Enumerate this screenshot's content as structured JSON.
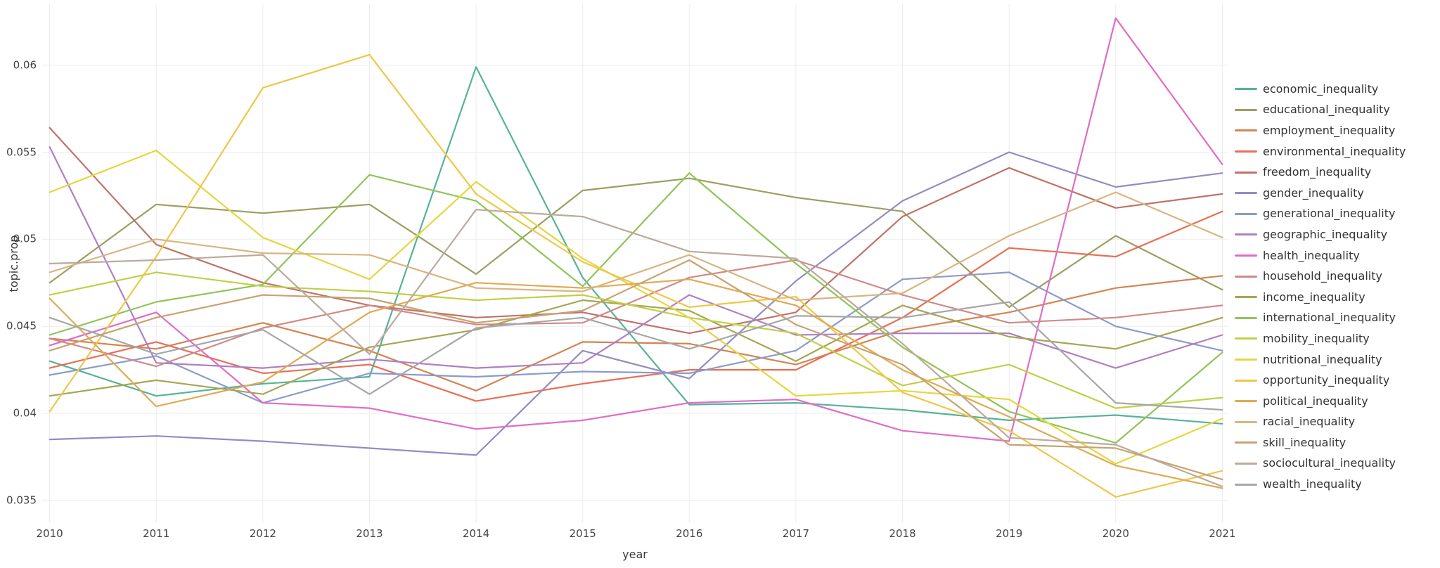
{
  "figure": {
    "background_color": "#ffffff",
    "gridline_color": "#ececec",
    "tick_label_color": "#444444",
    "axis_title_color": "#3a3a3a",
    "legend_label_color": "#333333"
  },
  "chart_data": {
    "type": "line",
    "title": "",
    "xlabel": "year",
    "ylabel": "topic.prop",
    "grid": true,
    "legend_position": "right",
    "x": [
      2010,
      2011,
      2012,
      2013,
      2014,
      2015,
      2016,
      2017,
      2018,
      2019,
      2020,
      2021
    ],
    "x_tick_labels": [
      "2010",
      "2011",
      "2012",
      "2013",
      "2014",
      "2015",
      "2016",
      "2017",
      "2018",
      "2019",
      "2020",
      "2021"
    ],
    "y_ticks": [
      {
        "label": "0.035",
        "value": 0.035
      },
      {
        "label": "0.04",
        "value": 0.04
      },
      {
        "label": "0.045",
        "value": 0.045
      },
      {
        "label": "0.05",
        "value": 0.05
      },
      {
        "label": "0.055",
        "value": 0.055
      },
      {
        "label": "0.06",
        "value": 0.06
      }
    ],
    "x_domain": [
      2009.93,
      2021.05
    ],
    "y_domain": [
      0.0337,
      0.0635
    ],
    "series": [
      {
        "name": "economic_inequality",
        "color": "#56b29a",
        "values": [
          0.043,
          0.041,
          0.0417,
          0.0421,
          0.0599,
          0.0478,
          0.0405,
          0.0406,
          0.0402,
          0.0396,
          0.0399,
          0.0394
        ]
      },
      {
        "name": "educational_inequality",
        "color": "#9d9f60",
        "values": [
          0.0475,
          0.052,
          0.0515,
          0.052,
          0.048,
          0.0528,
          0.0535,
          0.0524,
          0.0516,
          0.0461,
          0.0502,
          0.0471
        ]
      },
      {
        "name": "employment_inequality",
        "color": "#d48452",
        "values": [
          0.0443,
          0.0437,
          0.0452,
          0.0436,
          0.0413,
          0.0441,
          0.044,
          0.0428,
          0.0448,
          0.0458,
          0.0472,
          0.0479
        ]
      },
      {
        "name": "environmental_inequality",
        "color": "#e76f55",
        "values": [
          0.0426,
          0.0441,
          0.0423,
          0.0428,
          0.0407,
          0.0417,
          0.0425,
          0.0425,
          0.0455,
          0.0495,
          0.049,
          0.0516
        ]
      },
      {
        "name": "freedom_inequality",
        "color": "#bf7369",
        "values": [
          0.0564,
          0.0497,
          0.0475,
          0.0462,
          0.0455,
          0.0458,
          0.0446,
          0.0458,
          0.0513,
          0.0541,
          0.0518,
          0.0526
        ]
      },
      {
        "name": "gender_inequality",
        "color": "#938cc2",
        "values": [
          0.0385,
          0.0387,
          0.0384,
          0.038,
          0.0376,
          0.0436,
          0.042,
          0.0476,
          0.0522,
          0.055,
          0.053,
          0.0538
        ]
      },
      {
        "name": "generational_inequality",
        "color": "#8b9cca",
        "values": [
          0.0422,
          0.0433,
          0.0406,
          0.0423,
          0.0421,
          0.0424,
          0.0423,
          0.0436,
          0.0477,
          0.0481,
          0.045,
          0.0436
        ]
      },
      {
        "name": "geographic_inequality",
        "color": "#af7fc3",
        "values": [
          0.0553,
          0.0429,
          0.0426,
          0.0431,
          0.0426,
          0.0429,
          0.0468,
          0.0445,
          0.0446,
          0.0446,
          0.0426,
          0.0445
        ]
      },
      {
        "name": "health_inequality",
        "color": "#e06cc8",
        "values": [
          0.0439,
          0.0458,
          0.0406,
          0.0403,
          0.0391,
          0.0396,
          0.0406,
          0.0408,
          0.039,
          0.0384,
          0.0627,
          0.0543
        ]
      },
      {
        "name": "household_inequality",
        "color": "#d08a86",
        "values": [
          0.0443,
          0.0427,
          0.0449,
          0.0462,
          0.0451,
          0.0452,
          0.0478,
          0.0488,
          0.0468,
          0.0452,
          0.0455,
          0.0462
        ]
      },
      {
        "name": "income_inequality",
        "color": "#a5a653",
        "values": [
          0.041,
          0.0419,
          0.0411,
          0.0438,
          0.0448,
          0.0465,
          0.0459,
          0.043,
          0.0462,
          0.0444,
          0.0437,
          0.0455
        ]
      },
      {
        "name": "international_inequality",
        "color": "#8fc558",
        "values": [
          0.0445,
          0.0464,
          0.0474,
          0.0537,
          0.0522,
          0.0473,
          0.0538,
          0.0486,
          0.0438,
          0.0401,
          0.0383,
          0.0435
        ]
      },
      {
        "name": "mobility_inequality",
        "color": "#bfd044",
        "values": [
          0.0468,
          0.0481,
          0.0473,
          0.047,
          0.0465,
          0.0468,
          0.0455,
          0.0446,
          0.0416,
          0.0428,
          0.0403,
          0.0409
        ]
      },
      {
        "name": "nutritional_inequality",
        "color": "#e6d63e",
        "values": [
          0.0527,
          0.0551,
          0.0501,
          0.0477,
          0.0533,
          0.0489,
          0.0455,
          0.041,
          0.0413,
          0.0408,
          0.0371,
          0.0397
        ]
      },
      {
        "name": "opportunity_inequality",
        "color": "#eec748",
        "values": [
          0.0401,
          0.049,
          0.0587,
          0.0606,
          0.0526,
          0.0487,
          0.0461,
          0.0467,
          0.0412,
          0.039,
          0.0352,
          0.0367
        ]
      },
      {
        "name": "political_inequality",
        "color": "#e0aa52",
        "values": [
          0.0466,
          0.0404,
          0.0418,
          0.0458,
          0.0475,
          0.0472,
          0.0477,
          0.0462,
          0.0425,
          0.0398,
          0.037,
          0.0357
        ]
      },
      {
        "name": "racial_inequality",
        "color": "#d9b480",
        "values": [
          0.0481,
          0.05,
          0.0492,
          0.0491,
          0.0472,
          0.047,
          0.0491,
          0.0465,
          0.0469,
          0.0502,
          0.0527,
          0.0501
        ]
      },
      {
        "name": "skill_inequality",
        "color": "#c6a371",
        "values": [
          0.0436,
          0.0455,
          0.0468,
          0.0466,
          0.0452,
          0.0459,
          0.0488,
          0.0451,
          0.0428,
          0.0382,
          0.038,
          0.0362
        ]
      },
      {
        "name": "sociocultural_inequality",
        "color": "#bcaa9c",
        "values": [
          0.0486,
          0.0488,
          0.0491,
          0.0434,
          0.0517,
          0.0513,
          0.0493,
          0.0489,
          0.044,
          0.0386,
          0.0382,
          0.0358
        ]
      },
      {
        "name": "wealth_inequality",
        "color": "#a6a6aa",
        "values": [
          0.0455,
          0.0434,
          0.0448,
          0.0411,
          0.0449,
          0.0455,
          0.0437,
          0.0456,
          0.0455,
          0.0464,
          0.0406,
          0.0402
        ]
      }
    ]
  }
}
